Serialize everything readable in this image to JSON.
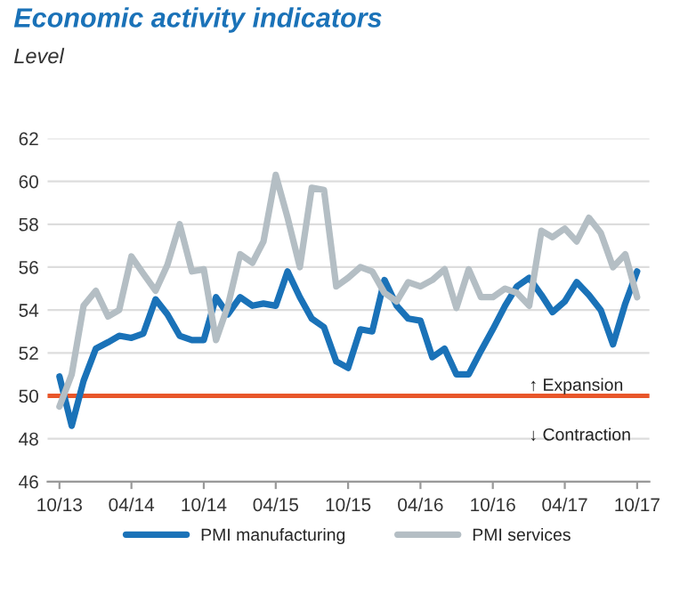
{
  "chart_data": {
    "type": "line",
    "title": "Economic activity indicators",
    "subtitle": "Level",
    "x": [
      "2013-10",
      "2013-11",
      "2013-12",
      "2014-01",
      "2014-02",
      "2014-03",
      "2014-04",
      "2014-05",
      "2014-06",
      "2014-07",
      "2014-08",
      "2014-09",
      "2014-10",
      "2014-11",
      "2014-12",
      "2015-01",
      "2015-02",
      "2015-03",
      "2015-04",
      "2015-05",
      "2015-06",
      "2015-07",
      "2015-08",
      "2015-09",
      "2015-10",
      "2015-11",
      "2015-12",
      "2016-01",
      "2016-02",
      "2016-03",
      "2016-04",
      "2016-05",
      "2016-06",
      "2016-07",
      "2016-08",
      "2016-09",
      "2016-10",
      "2016-11",
      "2016-12",
      "2017-01",
      "2017-02",
      "2017-03",
      "2017-04",
      "2017-05",
      "2017-06",
      "2017-07",
      "2017-08",
      "2017-09",
      "2017-10"
    ],
    "series": [
      {
        "name": "PMI manufacturing",
        "color": "#1a72b8",
        "values": [
          50.9,
          48.6,
          50.7,
          52.2,
          52.5,
          52.8,
          52.7,
          52.9,
          54.5,
          53.8,
          52.8,
          52.6,
          52.6,
          54.6,
          53.8,
          54.6,
          54.2,
          54.3,
          54.2,
          55.8,
          54.6,
          53.6,
          53.2,
          51.6,
          51.3,
          53.1,
          53.0,
          55.4,
          54.2,
          53.6,
          53.5,
          51.8,
          52.2,
          51.0,
          51.0,
          52.1,
          53.1,
          54.2,
          55.1,
          55.5,
          54.7,
          53.9,
          54.4,
          55.3,
          54.7,
          54.0,
          52.4,
          54.3,
          55.8
        ]
      },
      {
        "name": "PMI services",
        "color": "#b4bec4",
        "values": [
          49.5,
          51.0,
          54.2,
          54.9,
          53.7,
          54.0,
          56.5,
          55.7,
          54.9,
          56.1,
          58.0,
          55.8,
          55.9,
          52.6,
          54.2,
          56.6,
          56.2,
          57.2,
          60.3,
          58.3,
          56.0,
          59.7,
          59.6,
          55.1,
          55.5,
          56.0,
          55.8,
          54.8,
          54.4,
          55.3,
          55.1,
          55.4,
          55.9,
          54.1,
          55.9,
          54.6,
          54.6,
          55.0,
          54.8,
          54.2,
          57.7,
          57.4,
          57.8,
          57.2,
          58.3,
          57.6,
          56.0,
          56.6,
          54.6
        ]
      }
    ],
    "xlim": [
      "2013-09",
      "2017-11"
    ],
    "xticks": [
      {
        "value": "2013-10",
        "label": "10/13"
      },
      {
        "value": "2014-04",
        "label": "04/14"
      },
      {
        "value": "2014-10",
        "label": "10/14"
      },
      {
        "value": "2015-04",
        "label": "04/15"
      },
      {
        "value": "2015-10",
        "label": "10/15"
      },
      {
        "value": "2016-04",
        "label": "04/16"
      },
      {
        "value": "2016-10",
        "label": "10/16"
      },
      {
        "value": "2017-04",
        "label": "04/17"
      },
      {
        "value": "2017-10",
        "label": "10/17"
      }
    ],
    "ylim": [
      46,
      62
    ],
    "yticks": [
      46,
      48,
      50,
      52,
      54,
      56,
      58,
      60,
      62
    ],
    "ref_lines": [
      {
        "axis": "y",
        "value": 50,
        "color": "#e8562a"
      }
    ],
    "annotations": [
      "↑ Expansion",
      "↓ Contraction"
    ],
    "grid": "y",
    "legend": "bottom",
    "marker": "none",
    "line_style": "solid"
  }
}
